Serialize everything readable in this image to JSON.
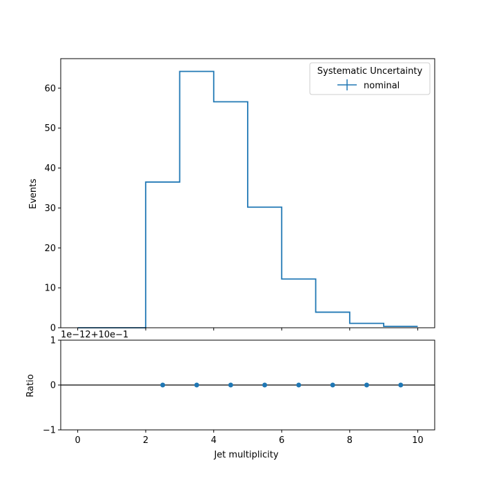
{
  "chart_data": [
    {
      "type": "histogram-step",
      "ylabel": "Events",
      "xlim": [
        -0.5,
        10.5
      ],
      "ylim": [
        0,
        67.4
      ],
      "bin_edges": [
        0,
        1,
        2,
        3,
        4,
        5,
        6,
        7,
        8,
        9,
        10
      ],
      "series": [
        {
          "name": "nominal",
          "values": [
            0,
            0,
            36.5,
            64.2,
            56.6,
            30.2,
            12.2,
            3.9,
            1.1,
            0.35
          ],
          "color": "#1f77b4"
        }
      ],
      "yticks": [
        0,
        10,
        20,
        30,
        40,
        50,
        60
      ],
      "legend": {
        "title": "Systematic Uncertainty",
        "entries": [
          "nominal"
        ],
        "placement": "top-right"
      },
      "grid": false
    },
    {
      "type": "scatter",
      "xlabel": "Jet multiplicity",
      "ylabel": "Ratio",
      "xlim": [
        -0.5,
        10.5
      ],
      "ylim": [
        -1,
        1
      ],
      "offset_text": "1e−12+10e−1",
      "x": [
        2.5,
        3.5,
        4.5,
        5.5,
        6.5,
        7.5,
        8.5,
        9.5
      ],
      "y": [
        0,
        0,
        0,
        0,
        0,
        0,
        0,
        0
      ],
      "reference_line": 0,
      "xticks": [
        0,
        2,
        4,
        6,
        8,
        10
      ],
      "yticks": [
        -1,
        0,
        1
      ],
      "ytick_labels": [
        "−1",
        "0",
        "1"
      ],
      "color": "#1f77b4",
      "grid": false
    }
  ]
}
